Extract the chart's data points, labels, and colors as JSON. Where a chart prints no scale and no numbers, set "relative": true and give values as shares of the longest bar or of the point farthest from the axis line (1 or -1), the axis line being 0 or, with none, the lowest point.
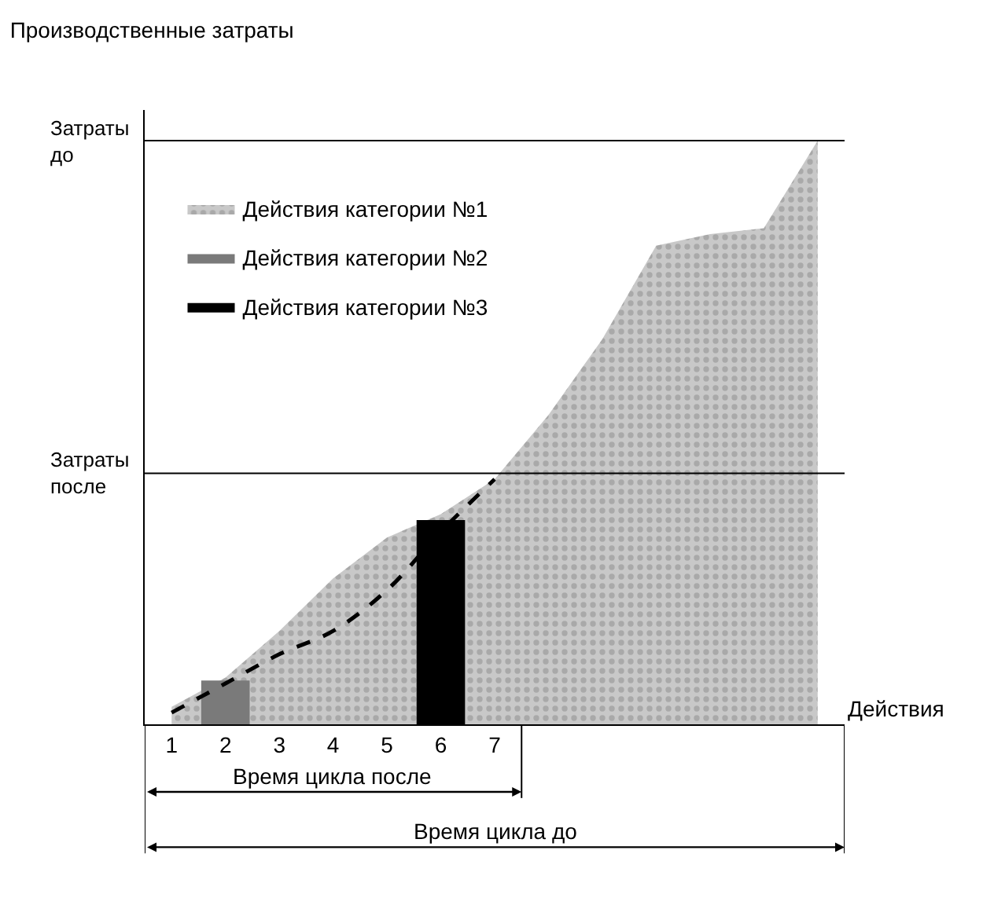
{
  "chart_data": {
    "type": "area",
    "title": "Производственные затраты",
    "xlabel": "Действия",
    "relative": true,
    "legend": "top left",
    "categories": [
      "1",
      "2",
      "3",
      "4",
      "5",
      "6",
      "7",
      null,
      null,
      null,
      null,
      null,
      null
    ],
    "series": [
      {
        "name": "Действия категории №1",
        "color": "#c8c8c8",
        "values": [
          0.03,
          0.08,
          0.16,
          0.25,
          0.32,
          0.36,
          0.42,
          0.53,
          0.66,
          0.82,
          0.84,
          0.85,
          1
        ]
      },
      {
        "name": "Действия категории №2",
        "type": "bar",
        "color": "#7a7a7a",
        "values": [
          null,
          0.075,
          null,
          null,
          null,
          null,
          null,
          null,
          null,
          null,
          null,
          null,
          null
        ]
      },
      {
        "name": "Действия категории №3",
        "type": "bar",
        "color": "#000000",
        "values": [
          null,
          null,
          null,
          null,
          null,
          0.35,
          null,
          null,
          null,
          null,
          null,
          null,
          null
        ]
      },
      {
        "type": "line",
        "color": "#000000",
        "line_style": "dashed",
        "values": [
          0.02,
          0.07,
          0.12,
          0.16,
          0.23,
          0.33,
          0.42,
          null,
          null,
          null,
          null,
          null,
          null
        ]
      }
    ],
    "ref_lines": [
      {
        "axis": "y",
        "value": 1,
        "label": "Затраты до"
      },
      {
        "axis": "y",
        "value": 0.43,
        "label": "Затраты после"
      }
    ],
    "annotations": [
      "Время цикла после",
      "Время цикла до"
    ]
  }
}
